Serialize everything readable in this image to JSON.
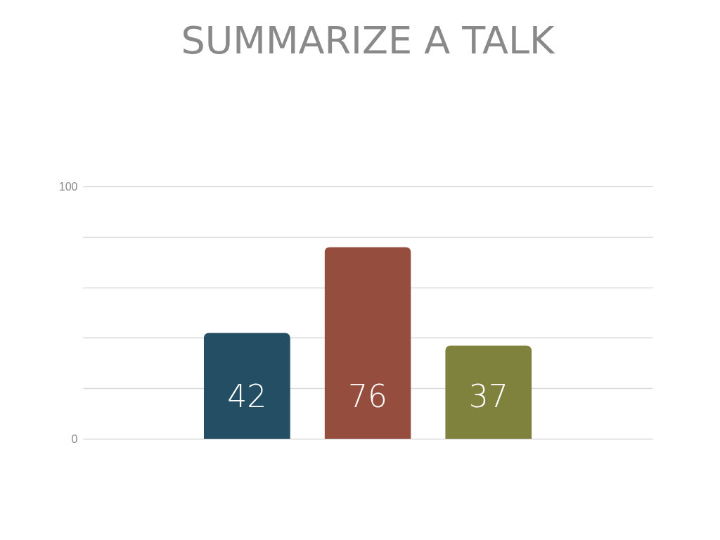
{
  "chart_data": {
    "type": "bar",
    "title": "SUMMARIZE A TALK",
    "categories": [
      null,
      null,
      null
    ],
    "values": [
      42,
      76,
      37
    ],
    "colors": [
      "#234e63",
      "#954d3e",
      "#7e823c"
    ],
    "ylim": [
      0,
      100
    ],
    "yticks": [
      0,
      {
        "value": 20,
        "label": null
      },
      {
        "value": 40,
        "label": null
      },
      {
        "value": 60,
        "label": null
      },
      {
        "value": 80,
        "label": null
      },
      100
    ],
    "grid": "y",
    "data_labels": true,
    "tick_labels": "y"
  }
}
